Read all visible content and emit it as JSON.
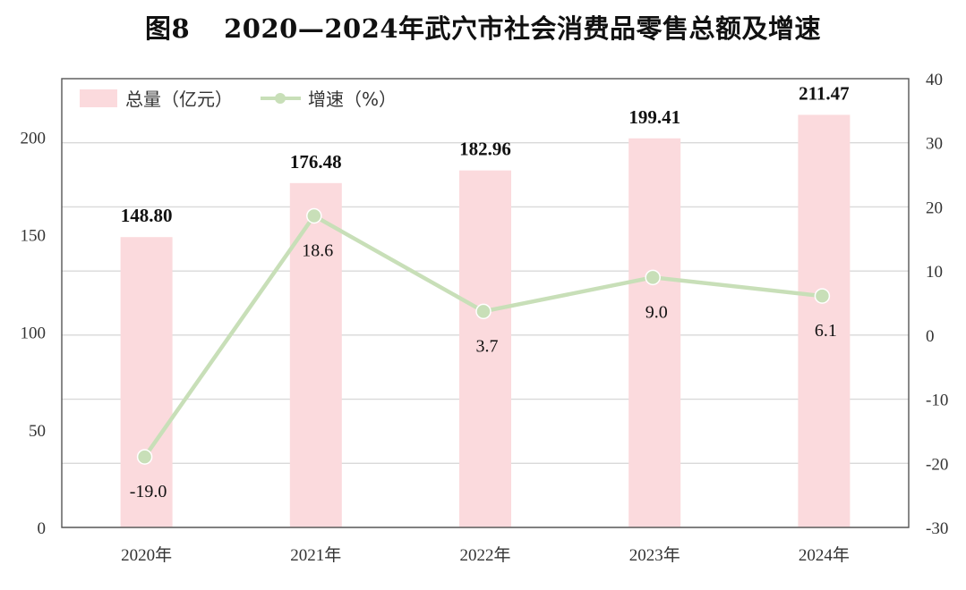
{
  "title": {
    "figure": "图8",
    "text": "2020—2024年武穴市社会消费品零售总额及增速"
  },
  "chart_data": {
    "type": "bar+line",
    "categories": [
      "2020年",
      "2021年",
      "2022年",
      "2023年",
      "2024年"
    ],
    "series": [
      {
        "name": "总量（亿元）",
        "type": "bar",
        "axis": "left",
        "values": [
          148.8,
          176.48,
          182.96,
          199.41,
          211.47
        ],
        "labels": [
          "148.80",
          "176.48",
          "182.96",
          "199.41",
          "211.47"
        ],
        "color": "#fbdadd"
      },
      {
        "name": "增速（%）",
        "type": "line",
        "axis": "right",
        "values": [
          -19.0,
          18.6,
          3.7,
          9.0,
          6.1
        ],
        "labels": [
          "-19.0",
          "18.6",
          "3.7",
          "9.0",
          "6.1"
        ],
        "color": "#c8dfb8"
      }
    ],
    "y_left": {
      "min": 0,
      "max": 230,
      "ticks": [
        "0",
        "50",
        "100",
        "150",
        "200"
      ],
      "tick_values": [
        0,
        50,
        100,
        150,
        200
      ]
    },
    "y_right": {
      "min": -30,
      "max": 40,
      "ticks": [
        "-30",
        "-20",
        "-10",
        "0",
        "10",
        "20",
        "30",
        "40"
      ],
      "tick_values": [
        -30,
        -20,
        -10,
        0,
        10,
        20,
        30,
        40
      ]
    },
    "grid": true,
    "legend": "top-left"
  }
}
